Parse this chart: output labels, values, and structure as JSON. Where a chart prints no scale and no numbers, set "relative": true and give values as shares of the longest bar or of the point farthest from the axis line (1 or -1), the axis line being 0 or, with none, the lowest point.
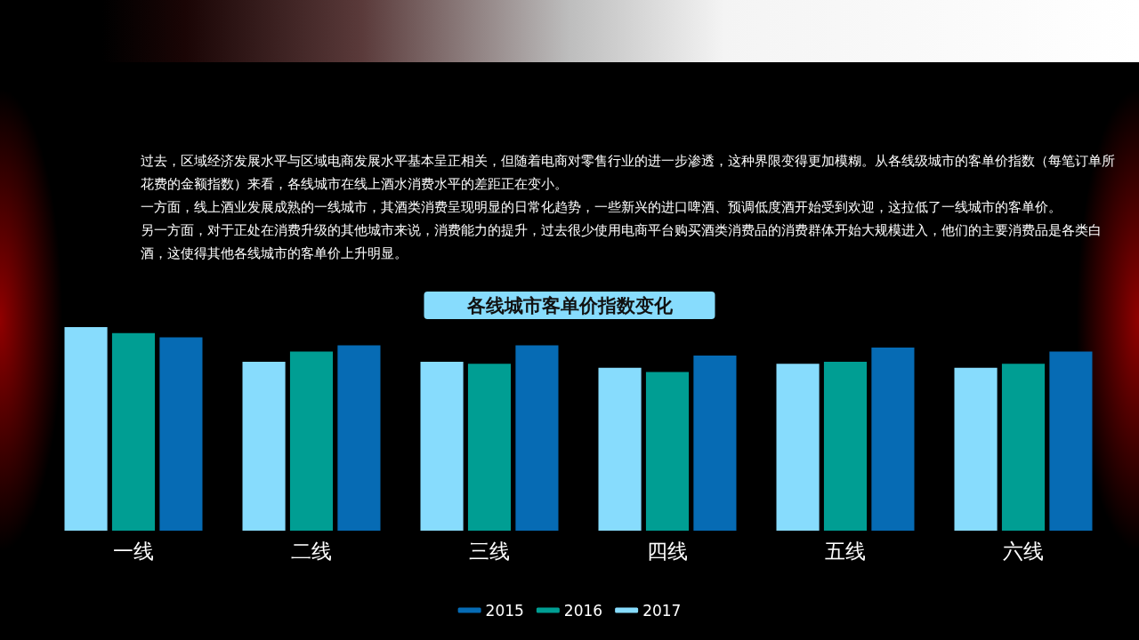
{
  "chart_data": {
    "type": "bar",
    "title": "各线城市客单价指数变化",
    "annotations": [
      "过去，区域经济发展水平与区域电商发展水平基本呈正相关，但随着电商对零售行业的进一步渗透，这种界限变得更加模糊。从各线级城市的客单价指数（每笔订单所花费的金额指数）来看，各线城市在线上酒水消费水平的差距正在变小。",
      "一方面，线上酒业发展成熟的一线城市，其酒类消费呈现明显的日常化趋势，一些新兴的进口啤酒、预调低度酒开始受到欢迎，这拉低了一线城市的客单价。",
      "另一方面，对于正处在消费升级的其他城市来说，消费能力的提升，过去很少使用电商平台购买酒类消费品的消费群体开始大规模进入，他们的主要消费品是各类白酒，这使得其他各线城市的客单价上升明显。"
    ],
    "categories": [
      "一线",
      "二线",
      "三线",
      "四线",
      "五线",
      "六线"
    ],
    "series": [
      {
        "name": "2017",
        "color": "#87dcfd",
        "values": [
          1,
          0.83,
          0.83,
          0.8,
          0.82,
          0.8
        ]
      },
      {
        "name": "2016",
        "color": "#009e93",
        "values": [
          0.97,
          0.88,
          0.82,
          0.78,
          0.83,
          0.82
        ]
      },
      {
        "name": "2015",
        "color": "#066bb4",
        "values": [
          0.95,
          0.91,
          0.91,
          0.86,
          0.9,
          0.88
        ]
      }
    ],
    "relative": true,
    "legend": "bottom"
  }
}
